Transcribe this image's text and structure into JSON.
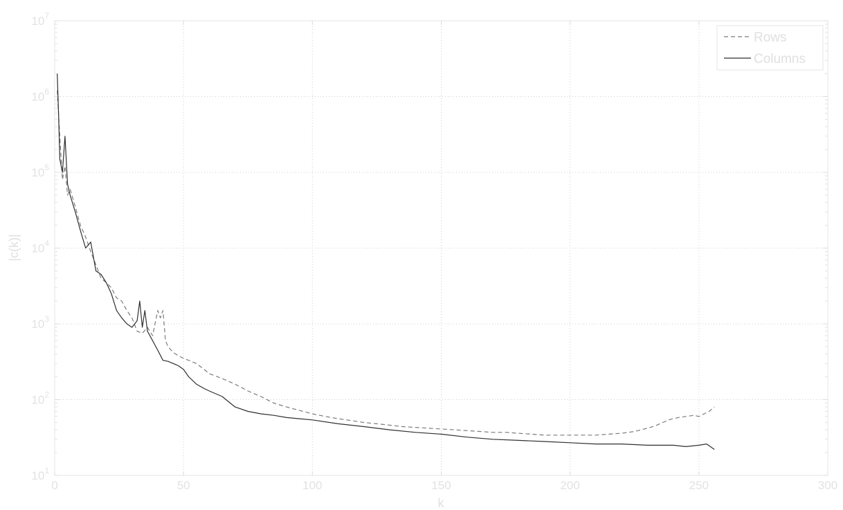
{
  "chart_data": {
    "type": "line",
    "title": "",
    "xlabel": "k",
    "ylabel": "|c(k)|",
    "xlim": [
      0,
      300
    ],
    "ylim": [
      10,
      10000000
    ],
    "yscale": "log",
    "grid": true,
    "legend_position": "top-right",
    "x_ticks": [
      "0",
      "50",
      "100",
      "150",
      "200",
      "250",
      "300"
    ],
    "y_ticks": [
      {
        "base": "10",
        "exp": "1"
      },
      {
        "base": "10",
        "exp": "2"
      },
      {
        "base": "10",
        "exp": "3"
      },
      {
        "base": "10",
        "exp": "4"
      },
      {
        "base": "10",
        "exp": "5"
      },
      {
        "base": "10",
        "exp": "6"
      },
      {
        "base": "10",
        "exp": "7"
      }
    ],
    "series": [
      {
        "name": "Rows",
        "style": "dashed",
        "color": "#7a7a7a",
        "x": [
          1,
          2,
          3,
          4,
          5,
          6,
          8,
          10,
          12,
          14,
          16,
          18,
          20,
          22,
          24,
          26,
          28,
          30,
          32,
          34,
          36,
          38,
          40,
          41,
          42,
          43,
          44,
          46,
          48,
          50,
          52,
          55,
          58,
          60,
          65,
          70,
          75,
          80,
          85,
          90,
          95,
          100,
          105,
          110,
          115,
          120,
          125,
          130,
          135,
          140,
          145,
          150,
          155,
          160,
          165,
          170,
          175,
          180,
          185,
          190,
          195,
          200,
          205,
          210,
          215,
          220,
          225,
          230,
          233,
          236,
          239,
          242,
          245,
          248,
          250,
          252,
          254,
          256
        ],
        "y": [
          1200000,
          300000,
          80000,
          120000,
          50000,
          60000,
          35000,
          20000,
          14000,
          9000,
          6000,
          4000,
          3500,
          3000,
          2200,
          2000,
          1500,
          1200,
          800,
          750,
          900,
          700,
          1500,
          1200,
          1500,
          600,
          500,
          420,
          380,
          350,
          330,
          300,
          250,
          220,
          190,
          160,
          130,
          110,
          90,
          80,
          72,
          65,
          60,
          56,
          53,
          50,
          48,
          46,
          44,
          43,
          42,
          41,
          40,
          39,
          38,
          37,
          37,
          36,
          35,
          34,
          34,
          34,
          34,
          34,
          35,
          36,
          38,
          42,
          45,
          50,
          55,
          58,
          60,
          62,
          60,
          65,
          70,
          80
        ]
      },
      {
        "name": "Columns",
        "style": "solid",
        "color": "#2e2e2e",
        "x": [
          1,
          1.5,
          2,
          3,
          4,
          5,
          6,
          8,
          10,
          12,
          14,
          16,
          18,
          20,
          22,
          24,
          26,
          28,
          30,
          32,
          33,
          34,
          35,
          36,
          38,
          40,
          42,
          44,
          46,
          48,
          50,
          52,
          55,
          58,
          60,
          65,
          70,
          75,
          80,
          85,
          90,
          95,
          100,
          110,
          120,
          130,
          140,
          150,
          160,
          170,
          180,
          190,
          200,
          210,
          220,
          230,
          240,
          245,
          250,
          253,
          256
        ],
        "y": [
          2000000,
          600000,
          150000,
          100000,
          300000,
          70000,
          50000,
          30000,
          17000,
          10000,
          12000,
          5000,
          4500,
          3500,
          2500,
          1500,
          1200,
          1000,
          900,
          1100,
          2000,
          900,
          1500,
          800,
          600,
          450,
          330,
          320,
          300,
          280,
          250,
          200,
          160,
          140,
          130,
          110,
          80,
          70,
          65,
          62,
          58,
          56,
          54,
          48,
          44,
          40,
          37,
          35,
          32,
          30,
          29,
          28,
          27,
          26,
          26,
          25,
          25,
          24,
          25,
          26,
          22
        ]
      }
    ]
  }
}
